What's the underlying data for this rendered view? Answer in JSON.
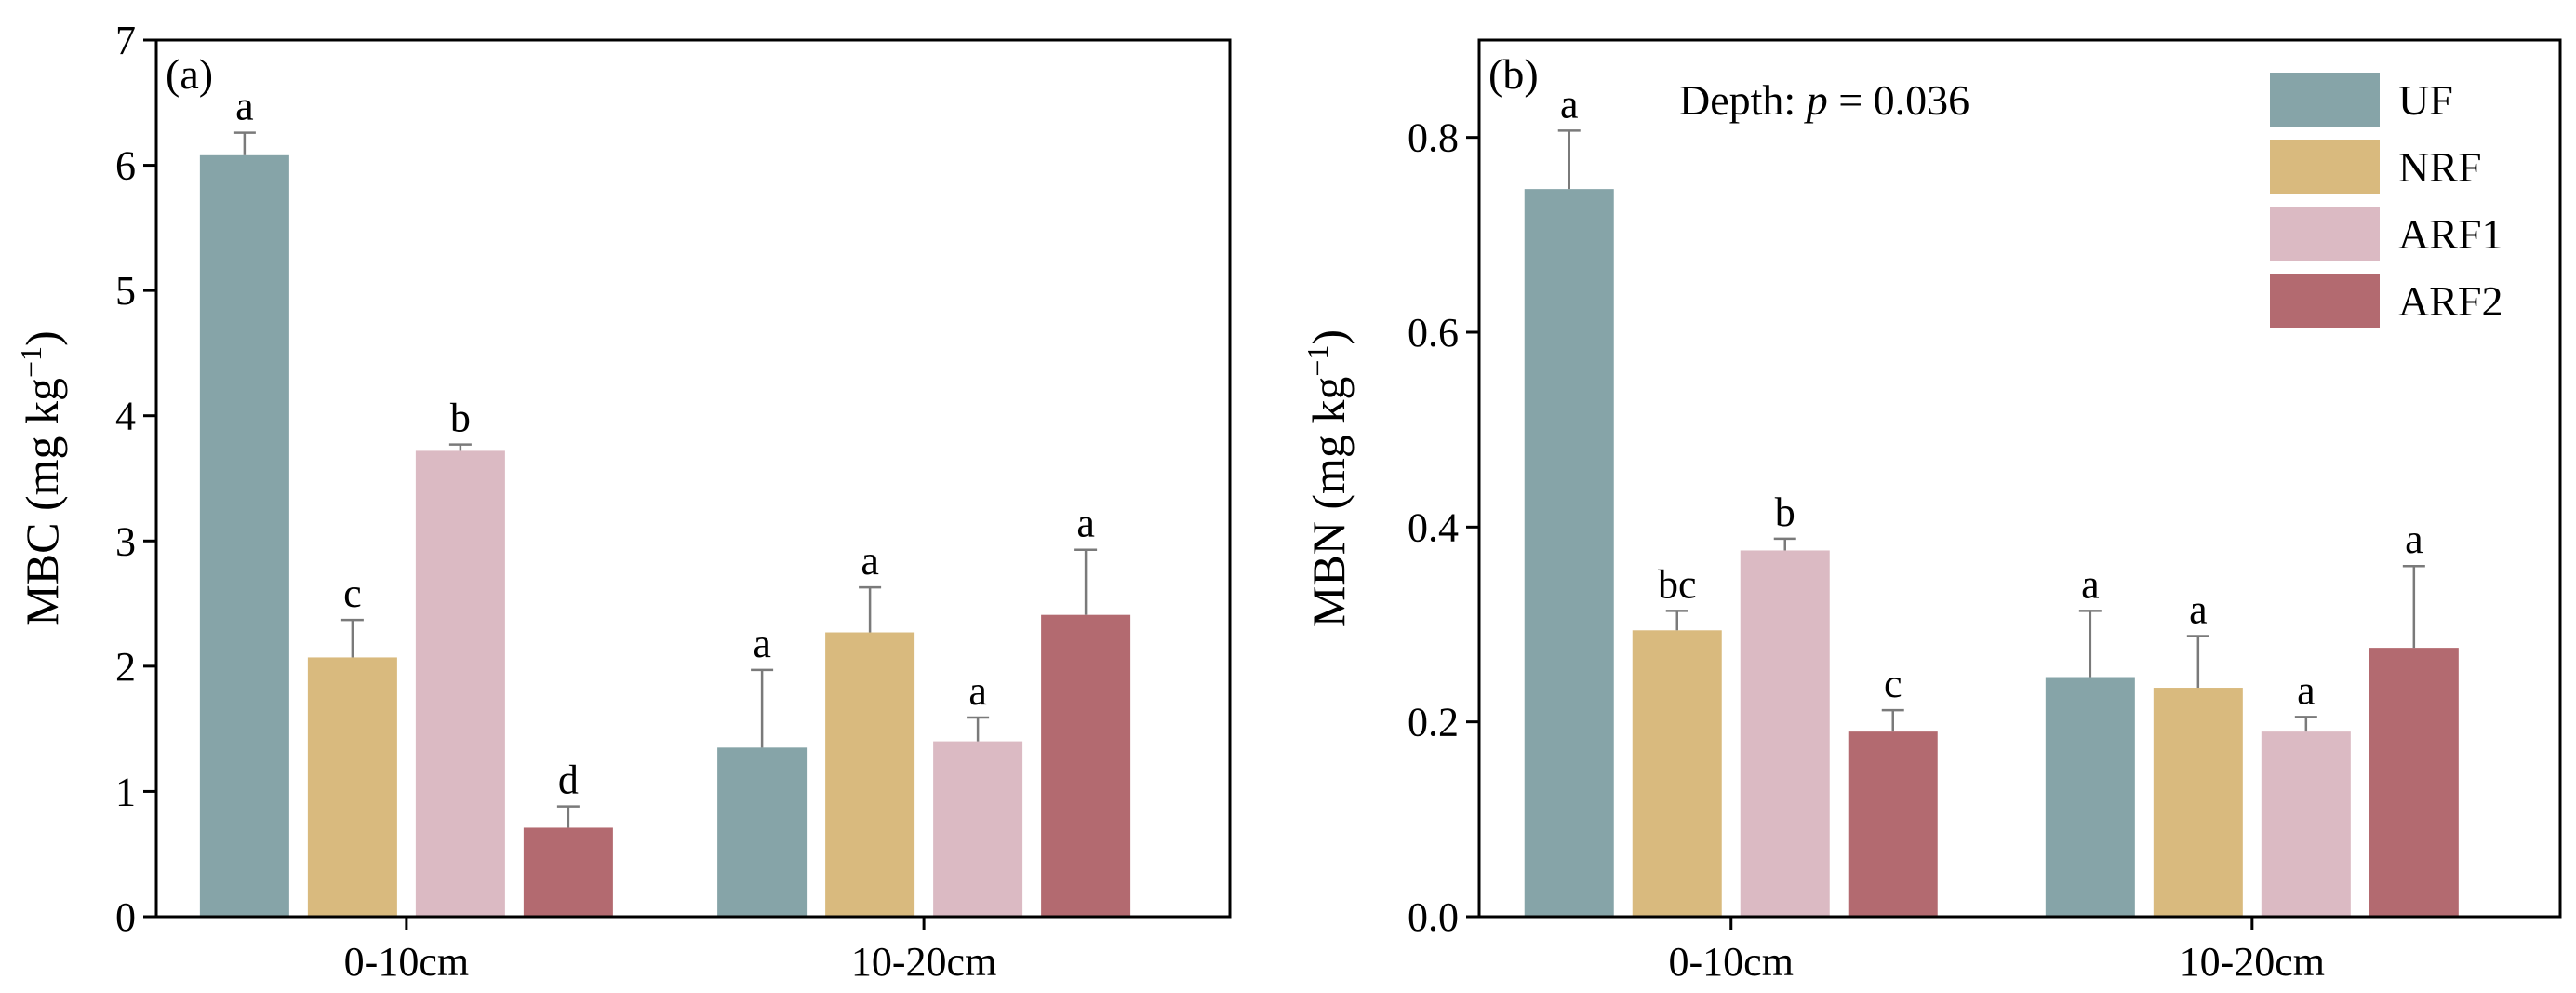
{
  "chart_data": [
    {
      "type": "bar",
      "panel_label": "(a)",
      "categories": [
        "0-10cm",
        "10-20cm"
      ],
      "ylabel": "MBC (mg kg",
      "ylabel_sup": "−1",
      "ylabel_close": ")",
      "ylim": [
        0,
        7
      ],
      "yticks": [
        0,
        1,
        2,
        3,
        4,
        5,
        6,
        7
      ],
      "yticklabels": [
        "0",
        "1",
        "2",
        "3",
        "4",
        "5",
        "6",
        "7"
      ],
      "series": [
        {
          "name": "UF",
          "values": [
            6.08,
            1.35
          ],
          "errors": [
            0.18,
            0.62
          ],
          "letters": [
            "a",
            "a"
          ]
        },
        {
          "name": "NRF",
          "values": [
            2.07,
            2.27
          ],
          "errors": [
            0.3,
            0.36
          ],
          "letters": [
            "c",
            "a"
          ]
        },
        {
          "name": "ARF1",
          "values": [
            3.72,
            1.4
          ],
          "errors": [
            0.05,
            0.19
          ],
          "letters": [
            "b",
            "a"
          ]
        },
        {
          "name": "ARF2",
          "values": [
            0.71,
            2.41
          ],
          "errors": [
            0.17,
            0.52
          ],
          "letters": [
            "d",
            "a"
          ]
        }
      ]
    },
    {
      "type": "bar",
      "panel_label": "(b)",
      "categories": [
        "0-10cm",
        "10-20cm"
      ],
      "ylabel": "MBN (mg kg",
      "ylabel_sup": "−1",
      "ylabel_close": ")",
      "ylim": [
        0,
        0.9
      ],
      "yticks": [
        0,
        0.2,
        0.4,
        0.6,
        0.8
      ],
      "yticklabels": [
        "0.0",
        "0.2",
        "0.4",
        "0.6",
        "0.8"
      ],
      "annotation": {
        "prefix": "Depth: ",
        "italic": "p",
        "suffix": " = 0.036"
      },
      "series": [
        {
          "name": "UF",
          "values": [
            0.747,
            0.246
          ],
          "errors": [
            0.06,
            0.068
          ],
          "letters": [
            "a",
            "a"
          ]
        },
        {
          "name": "NRF",
          "values": [
            0.294,
            0.235
          ],
          "errors": [
            0.02,
            0.053
          ],
          "letters": [
            "bc",
            "a"
          ]
        },
        {
          "name": "ARF1",
          "values": [
            0.376,
            0.19
          ],
          "errors": [
            0.012,
            0.015
          ],
          "letters": [
            "b",
            "a"
          ]
        },
        {
          "name": "ARF2",
          "values": [
            0.19,
            0.276
          ],
          "errors": [
            0.022,
            0.084
          ],
          "letters": [
            "c",
            "a"
          ]
        }
      ]
    }
  ],
  "legend": {
    "entries": [
      "UF",
      "NRF",
      "ARF1",
      "ARF2"
    ],
    "placement": "top-right of panel (b)"
  },
  "colors": {
    "UF": "#86a4a8",
    "NRF": "#d9ba7e",
    "ARF1": "#dbbac3",
    "ARF2": "#b36a70",
    "error": "#7a7a7a"
  }
}
